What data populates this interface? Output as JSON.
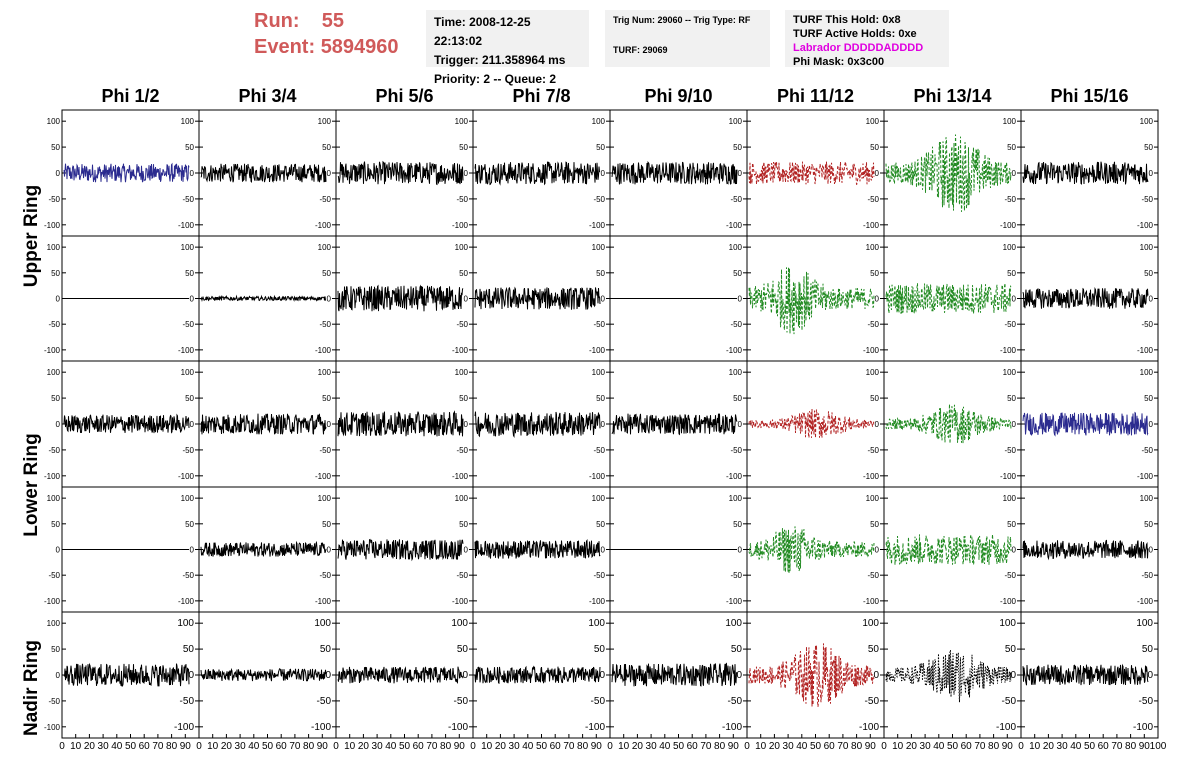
{
  "header": {
    "run_label": "Run:",
    "run_value": "55",
    "event_label": "Event:",
    "event_value": "5894960"
  },
  "info_panels": {
    "time": "Time: 2008-12-25 22:13:02",
    "trigger": "Trigger: 211.358964 ms",
    "priority": "Priority: 2 -- Queue: 2",
    "trig_num": "Trig Num: 29060 -- Trig Type: RF",
    "turf": "TURF: 29069",
    "turf_this_hold": "TURF This Hold: 0x8",
    "turf_active_holds": "TURF Active Holds: 0xe",
    "labrador": "Labrador DDDDDADDDD",
    "phi_mask": "Phi Mask: 0x3c00"
  },
  "columns": [
    "Phi 1/2",
    "Phi 3/4",
    "Phi 5/6",
    "Phi 7/8",
    "Phi 9/10",
    "Phi 11/12",
    "Phi 13/14",
    "Phi 15/16"
  ],
  "ring_labels": {
    "upper": "Upper Ring",
    "lower": "Lower Ring",
    "nadir": "Nadir Ring"
  },
  "colors": {
    "header_red": "#d05a5a",
    "labrador_magenta": "#e000e0",
    "trace_black": "#000000",
    "trace_blue": "#2b2b8f",
    "trace_red": "#b22222",
    "trace_green": "#228b22",
    "info_bg": "#f1f1f1"
  },
  "chart_data": {
    "type": "line",
    "title": "",
    "ylim": [
      -110,
      110
    ],
    "xlim": [
      0,
      100
    ],
    "y_ticks": [
      -100,
      -50,
      0,
      50,
      100
    ],
    "x_ticks": [
      0,
      10,
      20,
      30,
      40,
      50,
      60,
      70,
      80,
      90
    ],
    "x_tick_labels_per_panel": [
      "0",
      "10",
      "20",
      "30",
      "40",
      "50",
      "60",
      "70",
      "80",
      "90"
    ],
    "x_last_label": "100",
    "grid": false,
    "rows": [
      {
        "ring": "Upper Ring",
        "panels": [
          {
            "color": "blue",
            "style": "solid",
            "amplitude": 18,
            "envelope": "flat"
          },
          {
            "color": "black",
            "style": "solid",
            "amplitude": 18,
            "envelope": "flat"
          },
          {
            "color": "black",
            "style": "solid",
            "amplitude": 22,
            "envelope": "flat"
          },
          {
            "color": "black",
            "style": "solid",
            "amplitude": 22,
            "envelope": "flat"
          },
          {
            "color": "black",
            "style": "solid",
            "amplitude": 22,
            "envelope": "flat"
          },
          {
            "color": "red",
            "style": "dashed",
            "amplitude": 22,
            "envelope": "flat"
          },
          {
            "color": "green",
            "style": "dashed",
            "amplitude": 80,
            "envelope": "center"
          },
          {
            "color": "black",
            "style": "solid",
            "amplitude": 22,
            "envelope": "flat"
          }
        ]
      },
      {
        "ring": "Upper Ring",
        "panels": [
          {
            "color": "black",
            "style": "solid",
            "amplitude": 0,
            "envelope": "flat"
          },
          {
            "color": "black",
            "style": "solid",
            "amplitude": 4,
            "envelope": "flat"
          },
          {
            "color": "black",
            "style": "solid",
            "amplitude": 25,
            "envelope": "flat"
          },
          {
            "color": "black",
            "style": "solid",
            "amplitude": 22,
            "envelope": "flat"
          },
          {
            "color": "black",
            "style": "solid",
            "amplitude": 0,
            "envelope": "flat"
          },
          {
            "color": "green",
            "style": "dashed",
            "amplitude": 70,
            "envelope": "early"
          },
          {
            "color": "green",
            "style": "dashed",
            "amplitude": 30,
            "envelope": "flat"
          },
          {
            "color": "black",
            "style": "solid",
            "amplitude": 20,
            "envelope": "flat"
          }
        ]
      },
      {
        "ring": "Lower Ring",
        "panels": [
          {
            "color": "black",
            "style": "solid",
            "amplitude": 18,
            "envelope": "flat"
          },
          {
            "color": "black",
            "style": "solid",
            "amplitude": 20,
            "envelope": "flat"
          },
          {
            "color": "black",
            "style": "solid",
            "amplitude": 24,
            "envelope": "flat"
          },
          {
            "color": "black",
            "style": "solid",
            "amplitude": 24,
            "envelope": "flat"
          },
          {
            "color": "black",
            "style": "solid",
            "amplitude": 20,
            "envelope": "flat"
          },
          {
            "color": "red",
            "style": "dashed",
            "amplitude": 30,
            "envelope": "center"
          },
          {
            "color": "green",
            "style": "dashed",
            "amplitude": 40,
            "envelope": "center"
          },
          {
            "color": "blue",
            "style": "solid",
            "amplitude": 22,
            "envelope": "flat"
          }
        ]
      },
      {
        "ring": "Lower Ring",
        "panels": [
          {
            "color": "black",
            "style": "solid",
            "amplitude": 0,
            "envelope": "flat"
          },
          {
            "color": "black",
            "style": "solid",
            "amplitude": 14,
            "envelope": "flat"
          },
          {
            "color": "black",
            "style": "solid",
            "amplitude": 20,
            "envelope": "flat"
          },
          {
            "color": "black",
            "style": "solid",
            "amplitude": 18,
            "envelope": "flat"
          },
          {
            "color": "black",
            "style": "solid",
            "amplitude": 0,
            "envelope": "flat"
          },
          {
            "color": "green",
            "style": "dashed",
            "amplitude": 50,
            "envelope": "early"
          },
          {
            "color": "green",
            "style": "dashed",
            "amplitude": 30,
            "envelope": "flat"
          },
          {
            "color": "black",
            "style": "solid",
            "amplitude": 18,
            "envelope": "flat"
          }
        ]
      },
      {
        "ring": "Nadir Ring",
        "panels": [
          {
            "color": "black",
            "style": "solid",
            "amplitude": 22,
            "envelope": "flat"
          },
          {
            "color": "black",
            "style": "solid",
            "amplitude": 12,
            "envelope": "flat"
          },
          {
            "color": "black",
            "style": "solid",
            "amplitude": 16,
            "envelope": "flat"
          },
          {
            "color": "black",
            "style": "solid",
            "amplitude": 16,
            "envelope": "flat"
          },
          {
            "color": "black",
            "style": "solid",
            "amplitude": 22,
            "envelope": "flat"
          },
          {
            "color": "red",
            "style": "dashed",
            "amplitude": 65,
            "envelope": "center"
          },
          {
            "color": "black",
            "style": "dotted",
            "amplitude": 55,
            "envelope": "center"
          },
          {
            "color": "black",
            "style": "solid",
            "amplitude": 20,
            "envelope": "flat"
          }
        ]
      }
    ]
  }
}
